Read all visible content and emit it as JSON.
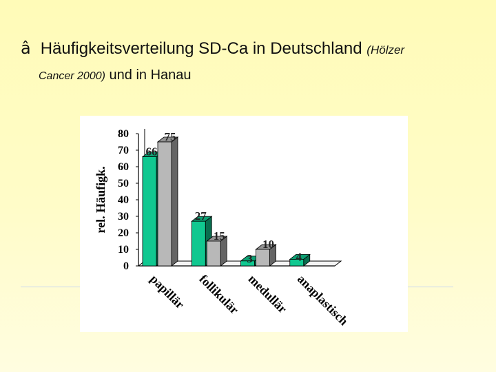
{
  "header": {
    "arrow": "â",
    "title_main": "Häufigkeitsverteilung SD-Ca in Deutschland",
    "title_cite_1": "(Hölzer",
    "title_cite_2": "Cancer 2000)",
    "title_end": "und in Hanau"
  },
  "chart_data": {
    "type": "bar",
    "categories": [
      "papillär",
      "follikulär",
      "medullär",
      "anaplastisch"
    ],
    "series": [
      {
        "values": [
          66,
          27,
          3,
          4
        ],
        "color": "#10c890"
      },
      {
        "values": [
          75,
          15,
          10,
          null
        ],
        "color": "#b8b8b8"
      }
    ],
    "ylabel": "rel. Häufigk.",
    "ylim": [
      0,
      80
    ],
    "yticks": [
      "0",
      "10",
      "20",
      "30",
      "40",
      "50",
      "60",
      "70",
      "80"
    ],
    "data_labels": [
      "66",
      "75",
      "27",
      "15",
      "3",
      "10",
      "4"
    ],
    "style": "3d-bars",
    "grid": false
  }
}
